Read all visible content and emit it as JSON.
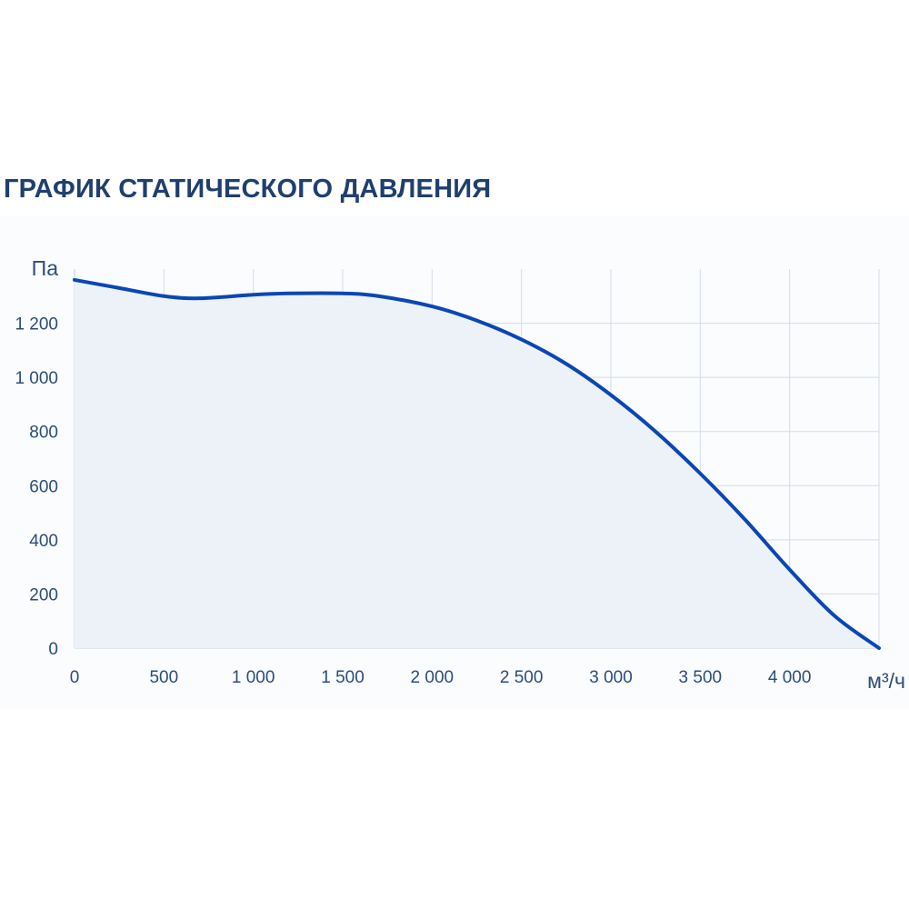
{
  "chart_data": {
    "type": "area",
    "title": "ГРАФИК СТАТИЧЕСКОГО ДАВЛЕНИЯ",
    "ylabel": "Па",
    "xlabel": "м³/ч",
    "x_ticks": [
      0,
      500,
      1000,
      1500,
      2000,
      2500,
      3000,
      3500,
      4000,
      4500
    ],
    "x_tick_labels": [
      "0",
      "500",
      "1 000",
      "1 500",
      "2 000",
      "2 500",
      "3 000",
      "3 500",
      "4 000",
      ""
    ],
    "y_ticks": [
      0,
      200,
      400,
      600,
      800,
      1000,
      1200
    ],
    "y_tick_labels": [
      "0",
      "200",
      "400",
      "600",
      "800",
      "1 000",
      "1 200"
    ],
    "xlim": [
      0,
      4500
    ],
    "ylim": [
      0,
      1400
    ],
    "grid": true,
    "series": [
      {
        "x": [
          0,
          250,
          500,
          700,
          1000,
          1200,
          1500,
          1700,
          2000,
          2250,
          2500,
          2750,
          3000,
          3250,
          3500,
          3750,
          4000,
          4250,
          4500
        ],
        "y": [
          1360,
          1330,
          1300,
          1292,
          1305,
          1310,
          1310,
          1300,
          1262,
          1210,
          1140,
          1050,
          935,
          800,
          645,
          475,
          290,
          120,
          0
        ],
        "color": "#0a47b5"
      }
    ],
    "fill_color": "#edf2f9"
  }
}
